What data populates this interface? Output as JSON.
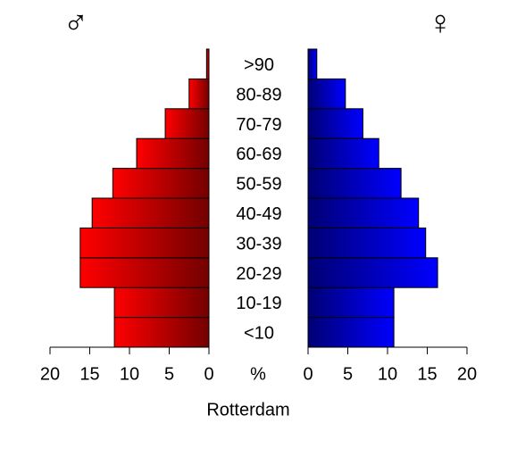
{
  "chart_data": {
    "type": "pyramid",
    "title": "Rotterdam",
    "xlabel": "%",
    "categories": [
      "<10",
      "10-19",
      "20-29",
      "30-39",
      "40-49",
      "50-59",
      "60-69",
      "70-79",
      "80-89",
      ">90"
    ],
    "series": [
      {
        "name": "♂",
        "color": "#ff0000",
        "values": [
          11.9,
          11.9,
          16.2,
          16.2,
          14.7,
          12.1,
          9.1,
          5.5,
          2.5,
          0.3
        ]
      },
      {
        "name": "♀",
        "color": "#0000ff",
        "values": [
          10.8,
          10.8,
          16.3,
          14.8,
          13.9,
          11.7,
          8.9,
          6.9,
          4.7,
          1.1
        ]
      }
    ],
    "xlim": [
      0,
      20
    ],
    "xticks": [
      0,
      5,
      10,
      15,
      20
    ]
  }
}
